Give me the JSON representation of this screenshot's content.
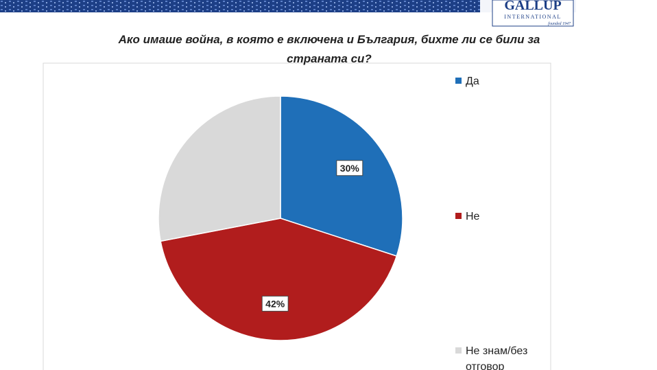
{
  "header": {
    "logo": "GALLUP",
    "logo_subtitle": "INTERNATIONAL",
    "logo_note": "founded 1947"
  },
  "chart_data": {
    "type": "pie",
    "title": "Ако имаше война, в която е включена и България, бихте ли се били за страната си?",
    "categories": [
      "Да",
      "Не",
      "Не знам/без отговор"
    ],
    "values": [
      30,
      42,
      28
    ],
    "value_labels": [
      "30%",
      "42%",
      null
    ],
    "colors": [
      "#1f6fb8",
      "#b11d1d",
      "#d9d9d9"
    ],
    "legend": "right"
  }
}
